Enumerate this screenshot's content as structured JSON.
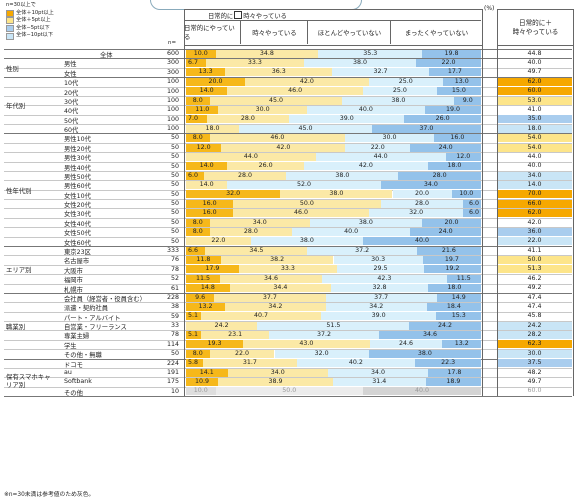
{
  "legend": {
    "title": "n=30以上で",
    "items": [
      {
        "label": "全体＋10pt以上",
        "color": "#f6a800"
      },
      {
        "label": "全体＋5pt以上",
        "color": "#fde58a"
      },
      {
        "label": "全体−5pt以下",
        "color": "#a9cdee"
      },
      {
        "label": "全体−10pt以下",
        "color": "#c9e5f6"
      }
    ]
  },
  "header": {
    "group_label_a": "日常的に",
    "group_plus": "＋",
    "group_label_b": "時々やっている",
    "unit": "(%)",
    "n_label": "n=",
    "right_line1": "日常的に＋",
    "right_line2": "時々やっている"
  },
  "footnote": "※n=30未満は参考値のため灰色。",
  "colors": {
    "seg1": "#f6b81a",
    "seg2": "#fbe9a6",
    "seg3": "#d9f0fb",
    "seg4": "#94c2ea",
    "seg1_ref": "#dedede",
    "seg2_ref": "#ececec",
    "seg3_ref": "#f3f3f3",
    "seg4_ref": "#d4d4d4"
  },
  "chart_data": {
    "type": "bar",
    "stacked": true,
    "orientation": "horizontal",
    "series_names": [
      "日常的にやっている",
      "時々やっている",
      "ほとんどやっていない",
      "まったくやっていない"
    ],
    "right_column_label": "日常的に＋時々やっている",
    "groups": [
      {
        "category": "",
        "rows": [
          {
            "label": "全体",
            "n": 600,
            "values": [
              10.0,
              34.8,
              35.3,
              19.8
            ],
            "total": 44.8,
            "highlight": ""
          }
        ]
      },
      {
        "category": "性別",
        "rows": [
          {
            "label": "男性",
            "n": 300,
            "values": [
              6.7,
              33.3,
              38.0,
              22.0
            ],
            "total": 40.0,
            "highlight": ""
          },
          {
            "label": "女性",
            "n": 300,
            "values": [
              13.3,
              36.3,
              32.7,
              17.7
            ],
            "total": 49.7,
            "highlight": ""
          }
        ]
      },
      {
        "category": "年代別",
        "rows": [
          {
            "label": "10代",
            "n": 100,
            "values": [
              20.0,
              42.0,
              25.0,
              13.0
            ],
            "total": 62.0,
            "highlight": "p10"
          },
          {
            "label": "20代",
            "n": 100,
            "values": [
              14.0,
              46.0,
              25.0,
              15.0
            ],
            "total": 60.0,
            "highlight": "p10"
          },
          {
            "label": "30代",
            "n": 100,
            "values": [
              8.0,
              45.0,
              38.0,
              9.0
            ],
            "total": 53.0,
            "highlight": "p5"
          },
          {
            "label": "40代",
            "n": 100,
            "values": [
              11.0,
              30.0,
              40.0,
              19.0
            ],
            "total": 41.0,
            "highlight": ""
          },
          {
            "label": "50代",
            "n": 100,
            "values": [
              7.0,
              28.0,
              39.0,
              26.0
            ],
            "total": 35.0,
            "highlight": "m5"
          },
          {
            "label": "60代",
            "n": 100,
            "values": [
              0.0,
              18.0,
              45.0,
              37.0
            ],
            "total": 18.0,
            "highlight": "m10"
          }
        ]
      },
      {
        "category": "性年代別",
        "rows": [
          {
            "label": "男性10代",
            "n": 50,
            "values": [
              8.0,
              46.0,
              30.0,
              16.0
            ],
            "total": 54.0,
            "highlight": "p5"
          },
          {
            "label": "男性20代",
            "n": 50,
            "values": [
              12.0,
              42.0,
              22.0,
              24.0
            ],
            "total": 54.0,
            "highlight": "p5"
          },
          {
            "label": "男性30代",
            "n": 50,
            "values": [
              0.0,
              44.0,
              44.0,
              12.0
            ],
            "total": 44.0,
            "highlight": ""
          },
          {
            "label": "男性40代",
            "n": 50,
            "values": [
              14.0,
              26.0,
              42.0,
              18.0
            ],
            "total": 40.0,
            "highlight": ""
          },
          {
            "label": "男性50代",
            "n": 50,
            "values": [
              6.0,
              28.0,
              38.0,
              28.0
            ],
            "total": 34.0,
            "highlight": "m10"
          },
          {
            "label": "男性60代",
            "n": 50,
            "values": [
              0.0,
              14.0,
              52.0,
              34.0
            ],
            "total": 14.0,
            "highlight": "m10"
          },
          {
            "label": "女性10代",
            "n": 50,
            "values": [
              32.0,
              38.0,
              20.0,
              10.0
            ],
            "total": 70.0,
            "highlight": "p10"
          },
          {
            "label": "女性20代",
            "n": 50,
            "values": [
              16.0,
              50.0,
              28.0,
              6.0
            ],
            "total": 66.0,
            "highlight": "p10"
          },
          {
            "label": "女性30代",
            "n": 50,
            "values": [
              16.0,
              46.0,
              32.0,
              6.0
            ],
            "total": 62.0,
            "highlight": "p10"
          },
          {
            "label": "女性40代",
            "n": 50,
            "values": [
              8.0,
              34.0,
              38.0,
              20.0
            ],
            "total": 42.0,
            "highlight": ""
          },
          {
            "label": "女性50代",
            "n": 50,
            "values": [
              8.0,
              28.0,
              40.0,
              24.0
            ],
            "total": 36.0,
            "highlight": "m5"
          },
          {
            "label": "女性60代",
            "n": 50,
            "values": [
              0.0,
              22.0,
              38.0,
              40.0
            ],
            "total": 22.0,
            "highlight": "m10"
          }
        ]
      },
      {
        "category": "エリア別",
        "rows": [
          {
            "label": "東京23区",
            "n": 333,
            "values": [
              6.6,
              34.5,
              37.2,
              21.6
            ],
            "total": 41.1,
            "highlight": ""
          },
          {
            "label": "名古屋市",
            "n": 76,
            "values": [
              11.8,
              38.2,
              30.3,
              19.7
            ],
            "total": 50.0,
            "highlight": "p5"
          },
          {
            "label": "大阪市",
            "n": 78,
            "values": [
              17.9,
              33.3,
              29.5,
              19.2
            ],
            "total": 51.3,
            "highlight": "p5"
          },
          {
            "label": "福岡市",
            "n": 52,
            "values": [
              11.5,
              34.6,
              42.3,
              11.5
            ],
            "total": 46.2,
            "highlight": ""
          },
          {
            "label": "札幌市",
            "n": 61,
            "values": [
              14.8,
              34.4,
              32.8,
              18.0
            ],
            "total": 49.2,
            "highlight": ""
          }
        ]
      },
      {
        "category": "職業別",
        "rows": [
          {
            "label": "会社員（経営者・役員含む）",
            "n": 228,
            "values": [
              9.6,
              37.7,
              37.7,
              14.9
            ],
            "total": 47.4,
            "highlight": ""
          },
          {
            "label": "派遣・契約社員",
            "n": 38,
            "values": [
              13.2,
              34.2,
              34.2,
              18.4
            ],
            "total": 47.4,
            "highlight": ""
          },
          {
            "label": "パート・アルバイト",
            "n": 59,
            "values": [
              5.1,
              40.7,
              39.0,
              15.3
            ],
            "total": 45.8,
            "highlight": ""
          },
          {
            "label": "自営業・フリーランス",
            "n": 33,
            "values": [
              0.0,
              24.2,
              51.5,
              24.2
            ],
            "total": 24.2,
            "highlight": "m10"
          },
          {
            "label": "専業主婦",
            "n": 78,
            "values": [
              5.1,
              23.1,
              37.2,
              34.6
            ],
            "total": 28.2,
            "highlight": "m10"
          },
          {
            "label": "学生",
            "n": 114,
            "values": [
              19.3,
              43.0,
              24.6,
              13.2
            ],
            "total": 62.3,
            "highlight": "p10"
          },
          {
            "label": "その他・無職",
            "n": 50,
            "values": [
              8.0,
              22.0,
              32.0,
              38.0
            ],
            "total": 30.0,
            "highlight": "m10"
          }
        ]
      },
      {
        "category": "保有スマホキャリア別",
        "rows": [
          {
            "label": "ドコモ",
            "n": 224,
            "values": [
              5.8,
              31.7,
              40.2,
              22.3
            ],
            "total": 37.5,
            "highlight": "m5"
          },
          {
            "label": "au",
            "n": 191,
            "label_ref": false,
            "values": [
              14.1,
              34.0,
              34.0,
              17.8
            ],
            "total": 48.2,
            "highlight": ""
          },
          {
            "label": "Softbank",
            "n": 175,
            "values": [
              10.9,
              38.9,
              31.4,
              18.9
            ],
            "total": 49.7,
            "highlight": ""
          },
          {
            "label": "その他",
            "n": 10,
            "reference": true,
            "values": [
              10.0,
              50.0,
              0.0,
              40.0
            ],
            "total": 60.0,
            "highlight": ""
          }
        ]
      }
    ]
  }
}
